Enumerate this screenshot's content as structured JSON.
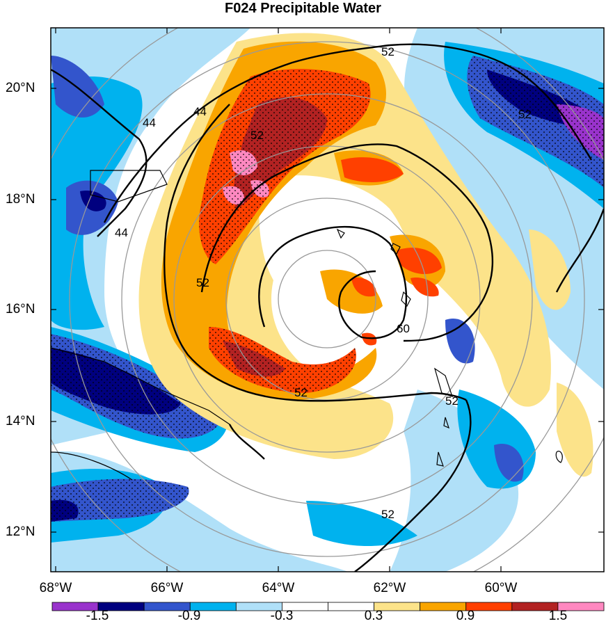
{
  "title": "F024 Precipitable Water",
  "lat_labels": [
    "20°N",
    "18°N",
    "16°N",
    "14°N",
    "12°N"
  ],
  "lon_labels": [
    "68°W",
    "66°W",
    "64°W",
    "62°W",
    "60°W"
  ],
  "colorbar": {
    "ticks": [
      "-1.5",
      "-0.9",
      "-0.3",
      "0.3",
      "0.9",
      "1.5"
    ],
    "colors": [
      "#9933cc",
      "#00007f",
      "#3355cc",
      "#00b2ee",
      "#b0e0f8",
      "#ffffff",
      "#ffffff",
      "#fce38a",
      "#f9a500",
      "#ff4000",
      "#b22222",
      "#ff88c0"
    ]
  },
  "contour_labels": [
    "44",
    "44",
    "44",
    "52",
    "52",
    "52",
    "52",
    "52",
    "52",
    "52",
    "60"
  ],
  "colors": {
    "frame": "#000000",
    "range_rings": "#999999",
    "contour": "#000000"
  }
}
